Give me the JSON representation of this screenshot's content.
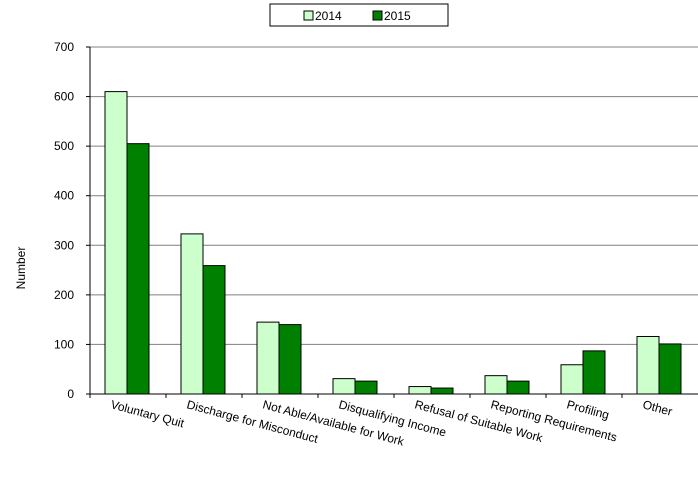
{
  "chart_data": {
    "type": "bar",
    "title": "",
    "xlabel": "",
    "ylabel": "Number",
    "ylim": [
      0,
      700
    ],
    "yticks": [
      0,
      100,
      200,
      300,
      400,
      500,
      600,
      700
    ],
    "grid": true,
    "legend_position": "top-center",
    "categories": [
      "Voluntary Quit",
      "Discharge for Misconduct",
      "Not Able/Available for Work",
      "Disqualifying Income",
      "Refusal of Suitable Work",
      "Reporting Requirements",
      "Profiling",
      "Other"
    ],
    "series": [
      {
        "name": "2014",
        "color": "#ccffcc",
        "values": [
          610,
          323,
          145,
          31,
          15,
          37,
          59,
          116
        ]
      },
      {
        "name": "2015",
        "color": "#008000",
        "values": [
          505,
          259,
          140,
          26,
          12,
          26,
          87,
          101
        ]
      }
    ]
  }
}
